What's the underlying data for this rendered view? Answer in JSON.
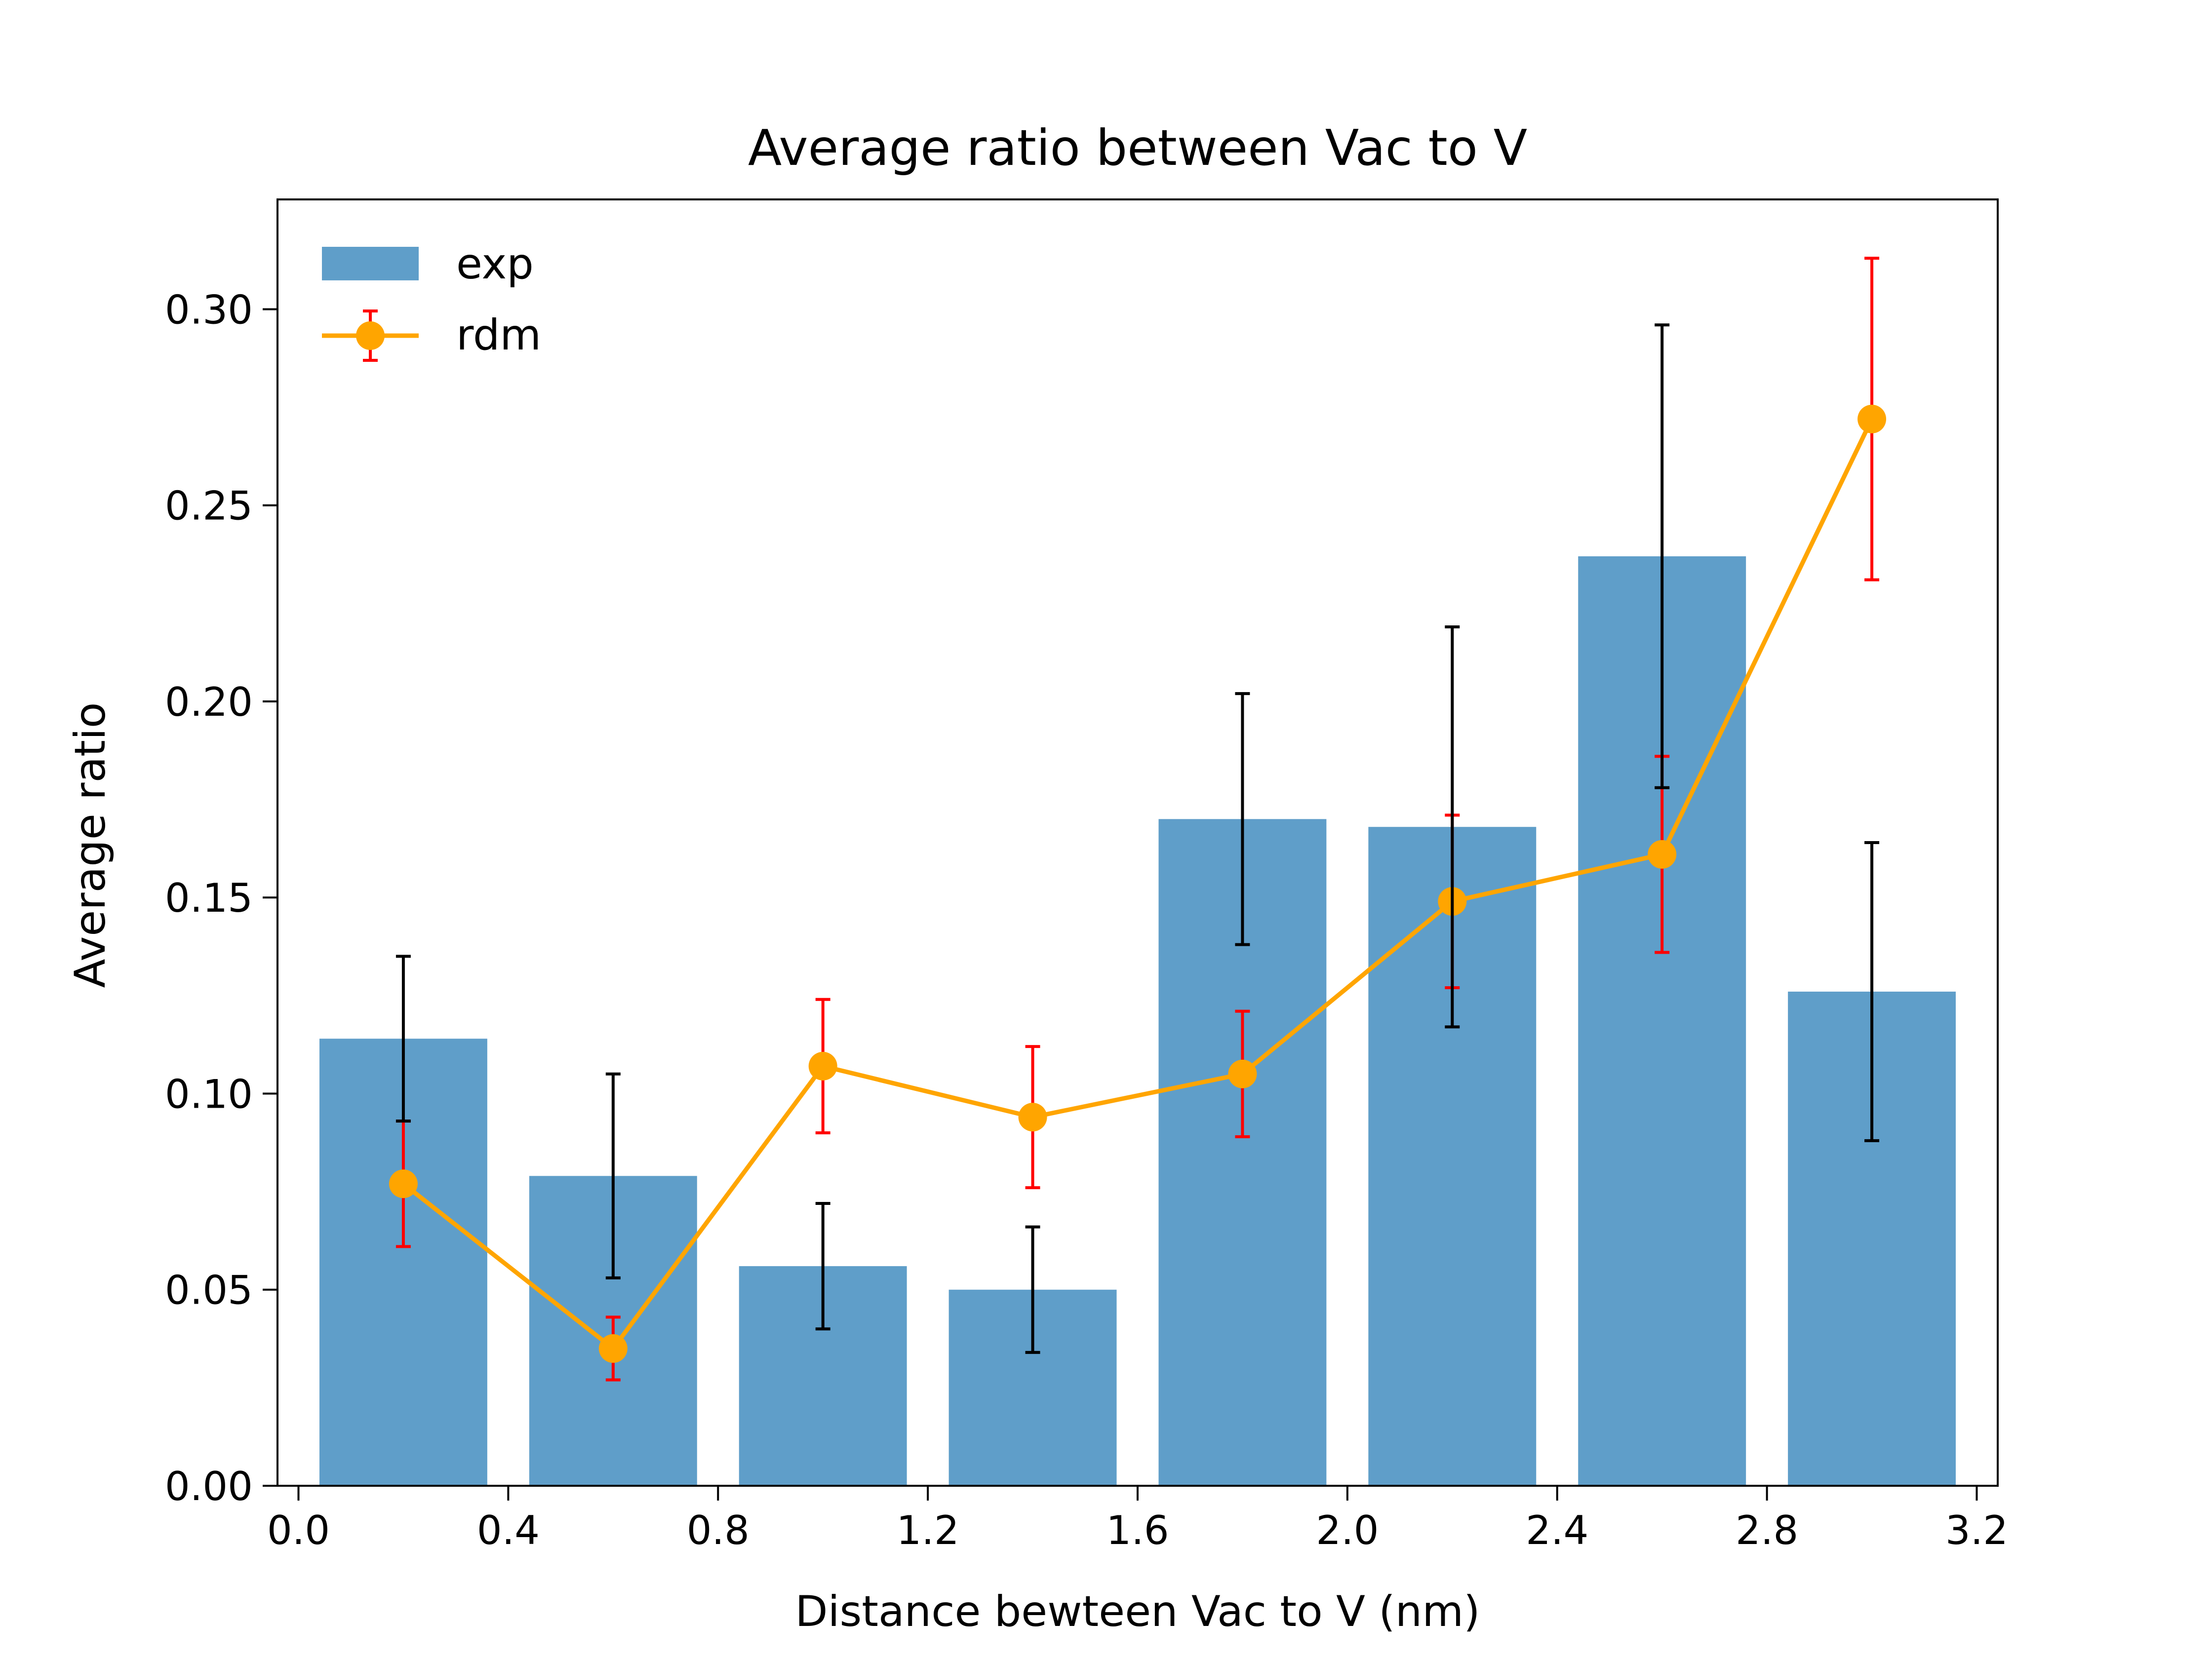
{
  "chart_data": {
    "type": "bar",
    "title": "Average ratio between Vac to V",
    "xlabel": "Distance bewteen Vac to V (nm)",
    "ylabel": "Average ratio",
    "xlim": [
      -0.04,
      3.24
    ],
    "ylim": [
      0,
      0.328
    ],
    "x_ticks": [
      0.0,
      0.4,
      0.8,
      1.2,
      1.6,
      2.0,
      2.4,
      2.8,
      3.2
    ],
    "x_tick_labels": [
      "0.0",
      "0.4",
      "0.8",
      "1.2",
      "1.6",
      "2.0",
      "2.4",
      "2.8",
      "3.2"
    ],
    "y_ticks": [
      0.0,
      0.05,
      0.1,
      0.15,
      0.2,
      0.25,
      0.3
    ],
    "y_tick_labels": [
      "0.00",
      "0.05",
      "0.10",
      "0.15",
      "0.20",
      "0.25",
      "0.30"
    ],
    "grid": false,
    "legend_position": "top-left",
    "bar_width": 0.32,
    "series": [
      {
        "name": "exp",
        "kind": "bar",
        "color": "#5f9ec9",
        "x": [
          0.2,
          0.6,
          1.0,
          1.4,
          1.8,
          2.2,
          2.6,
          3.0
        ],
        "values": [
          0.114,
          0.079,
          0.056,
          0.05,
          0.17,
          0.168,
          0.237,
          0.126
        ],
        "error": [
          0.021,
          0.026,
          0.016,
          0.016,
          0.032,
          0.051,
          0.059,
          0.038
        ],
        "error_color": "#000000"
      },
      {
        "name": "rdm",
        "kind": "line",
        "color": "#ffa500",
        "x": [
          0.2,
          0.6,
          1.0,
          1.4,
          1.8,
          2.2,
          2.6,
          3.0
        ],
        "values": [
          0.077,
          0.035,
          0.107,
          0.094,
          0.105,
          0.149,
          0.161,
          0.272
        ],
        "error": [
          0.016,
          0.008,
          0.017,
          0.018,
          0.016,
          0.022,
          0.025,
          0.041
        ],
        "error_color": "#ff0000"
      }
    ]
  }
}
